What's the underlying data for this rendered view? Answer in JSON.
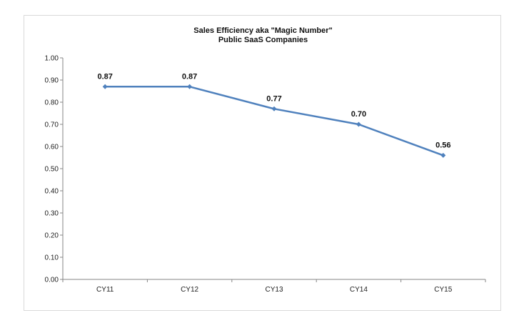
{
  "chart_data": {
    "type": "line",
    "title": "Sales Efficiency aka \"Magic Number\"",
    "subtitle": "Public SaaS Companies",
    "categories": [
      "CY11",
      "CY12",
      "CY13",
      "CY14",
      "CY15"
    ],
    "series": [
      {
        "values": [
          0.87,
          0.87,
          0.77,
          0.7,
          0.56
        ],
        "color": "#4f81bd"
      }
    ],
    "data_labels": [
      "0.87",
      "0.87",
      "0.77",
      "0.70",
      "0.56"
    ],
    "y_ticks": [
      "0.00",
      "0.10",
      "0.20",
      "0.30",
      "0.40",
      "0.50",
      "0.60",
      "0.70",
      "0.80",
      "0.90",
      "1.00"
    ],
    "ylim": [
      0,
      1.0
    ],
    "grid": false,
    "legend": "none"
  }
}
